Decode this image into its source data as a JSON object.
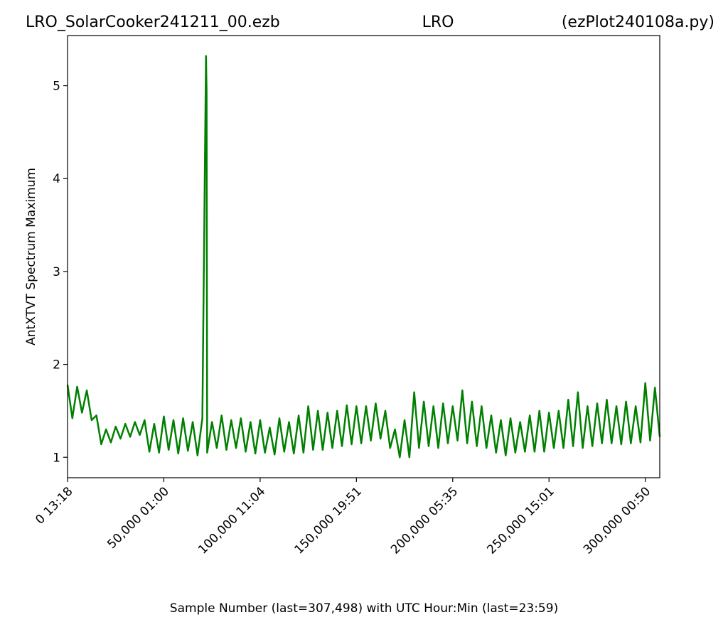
{
  "chart_data": {
    "type": "line",
    "title_left": "LRO_SolarCooker241211_00.ezb",
    "title_center": "LRO",
    "title_right": "(ezPlot240108a.py)",
    "x_label": "Sample Number (last=307,498) with UTC Hour:Min (last=23:59)",
    "y_label": "AntXTVT Spectrum Maximum",
    "xlim": [
      0,
      307498
    ],
    "ylim": [
      0.78,
      5.54
    ],
    "xticks": [
      {
        "value": 0,
        "label": "0  13:18"
      },
      {
        "value": 50000,
        "label": "50,000  01:00"
      },
      {
        "value": 100000,
        "label": "100,000  11:04"
      },
      {
        "value": 150000,
        "label": "150,000  19:51"
      },
      {
        "value": 200000,
        "label": "200,000  05:35"
      },
      {
        "value": 250000,
        "label": "250,000  15:01"
      },
      {
        "value": 300000,
        "label": "300,000  00:50"
      }
    ],
    "yticks": [
      1,
      2,
      3,
      4,
      5
    ],
    "grid": false,
    "series": [
      {
        "color": "#008000",
        "x": [
          0,
          2500,
          5000,
          7500,
          10000,
          12500,
          15000,
          17500,
          20000,
          22500,
          25000,
          27500,
          30000,
          32500,
          35000,
          37500,
          40000,
          42500,
          45000,
          47500,
          50000,
          52500,
          55000,
          57500,
          60000,
          62500,
          65000,
          67500,
          70000,
          71900,
          72200,
          72500,
          75000,
          77500,
          80000,
          82500,
          85000,
          87500,
          90000,
          92500,
          95000,
          97500,
          100000,
          102500,
          105000,
          107500,
          110000,
          112500,
          115000,
          117500,
          120000,
          122500,
          125000,
          127500,
          130000,
          132500,
          135000,
          137500,
          140000,
          142500,
          145000,
          147500,
          150000,
          152500,
          155000,
          157500,
          160000,
          162500,
          165000,
          167500,
          170000,
          172500,
          175000,
          177500,
          180000,
          182500,
          185000,
          187500,
          190000,
          192500,
          195000,
          197500,
          200000,
          202500,
          205000,
          207500,
          210000,
          212500,
          215000,
          217500,
          220000,
          222500,
          225000,
          227500,
          230000,
          232500,
          235000,
          237500,
          240000,
          242500,
          245000,
          247500,
          250000,
          252500,
          255000,
          257500,
          260000,
          262500,
          265000,
          267500,
          270000,
          272500,
          275000,
          277500,
          280000,
          282500,
          285000,
          287500,
          290000,
          292500,
          295000,
          297500,
          300000,
          302500,
          305000,
          307498
        ],
        "values": [
          1.78,
          1.42,
          1.76,
          1.48,
          1.72,
          1.4,
          1.45,
          1.14,
          1.3,
          1.16,
          1.33,
          1.2,
          1.36,
          1.22,
          1.38,
          1.24,
          1.4,
          1.06,
          1.36,
          1.05,
          1.44,
          1.08,
          1.4,
          1.04,
          1.42,
          1.07,
          1.38,
          1.02,
          1.42,
          5.32,
          4.92,
          1.05,
          1.38,
          1.1,
          1.45,
          1.08,
          1.4,
          1.1,
          1.42,
          1.06,
          1.38,
          1.04,
          1.4,
          1.05,
          1.32,
          1.03,
          1.42,
          1.06,
          1.38,
          1.04,
          1.45,
          1.05,
          1.55,
          1.08,
          1.5,
          1.08,
          1.48,
          1.1,
          1.5,
          1.12,
          1.56,
          1.14,
          1.55,
          1.15,
          1.55,
          1.18,
          1.58,
          1.2,
          1.5,
          1.1,
          1.3,
          1.0,
          1.4,
          1.0,
          1.7,
          1.1,
          1.6,
          1.12,
          1.55,
          1.1,
          1.58,
          1.15,
          1.55,
          1.18,
          1.72,
          1.15,
          1.6,
          1.12,
          1.55,
          1.1,
          1.45,
          1.05,
          1.4,
          1.02,
          1.42,
          1.05,
          1.38,
          1.06,
          1.45,
          1.06,
          1.5,
          1.06,
          1.48,
          1.1,
          1.5,
          1.1,
          1.62,
          1.12,
          1.7,
          1.1,
          1.55,
          1.12,
          1.58,
          1.15,
          1.62,
          1.15,
          1.55,
          1.14,
          1.6,
          1.15,
          1.55,
          1.16,
          1.8,
          1.18,
          1.75,
          1.22
        ]
      }
    ]
  }
}
